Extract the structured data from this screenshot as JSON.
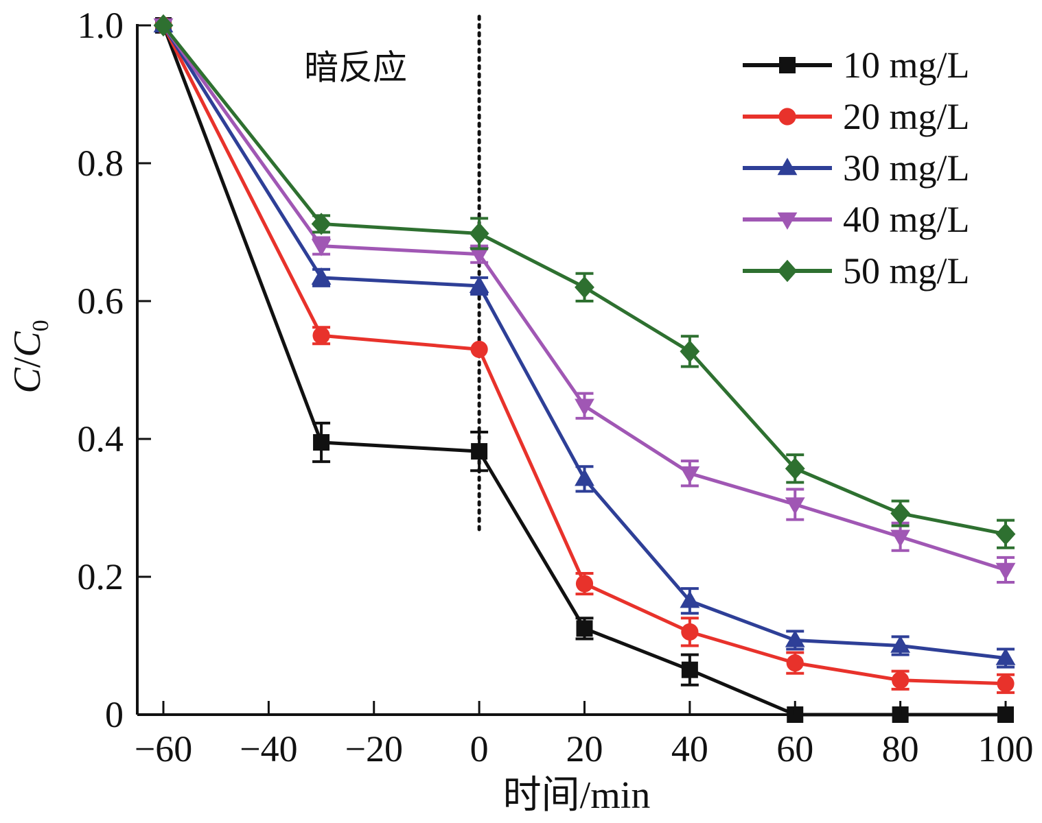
{
  "chart_data": {
    "type": "line",
    "xlabel": "时间/min",
    "ylabel": {
      "c": "C",
      "slash": "/",
      "c0": "C",
      "sub": "0"
    },
    "xlim": [
      -62,
      102
    ],
    "ylim": [
      0,
      1.0
    ],
    "x_ticks": [
      -60,
      -40,
      -20,
      0,
      20,
      40,
      60,
      80,
      100
    ],
    "x_tick_labels": [
      "−60",
      "−40",
      "−20",
      "0",
      "20",
      "40",
      "60",
      "80",
      "100"
    ],
    "y_ticks": [
      0,
      0.2,
      0.4,
      0.6,
      0.8,
      1.0
    ],
    "y_tick_labels": [
      "0",
      "0.2",
      "0.4",
      "0.6",
      "0.8",
      "1.0"
    ],
    "annotation": {
      "text": "暗反应",
      "x": -30,
      "y": 0.94
    },
    "dark_reaction_line_x": 0,
    "legend_position": "top-right",
    "grid": false,
    "x": [
      -60,
      -30,
      0,
      20,
      40,
      60,
      80,
      100
    ],
    "series": [
      {
        "name": "10 mg/L",
        "color": "#111111",
        "marker": "square",
        "values": [
          1.0,
          0.395,
          0.382,
          0.125,
          0.065,
          0.0,
          0.0,
          0.0
        ],
        "errors": [
          0.0,
          0.028,
          0.028,
          0.015,
          0.022,
          0.0,
          0.0,
          0.0
        ]
      },
      {
        "name": "20 mg/L",
        "color": "#e8322b",
        "marker": "circle",
        "values": [
          1.0,
          0.55,
          0.53,
          0.19,
          0.12,
          0.075,
          0.05,
          0.045
        ],
        "errors": [
          0.0,
          0.012,
          0.0,
          0.015,
          0.02,
          0.015,
          0.013,
          0.013
        ]
      },
      {
        "name": "30 mg/L",
        "color": "#2e3f97",
        "marker": "triangle-up",
        "values": [
          1.0,
          0.634,
          0.622,
          0.342,
          0.165,
          0.108,
          0.1,
          0.082
        ],
        "errors": [
          0.0,
          0.012,
          0.012,
          0.018,
          0.018,
          0.013,
          0.013,
          0.013
        ]
      },
      {
        "name": "40 mg/L",
        "color": "#a057b4",
        "marker": "triangle-down",
        "values": [
          1.0,
          0.68,
          0.668,
          0.448,
          0.35,
          0.305,
          0.258,
          0.21
        ],
        "errors": [
          0.0,
          0.012,
          0.012,
          0.018,
          0.018,
          0.022,
          0.02,
          0.018
        ]
      },
      {
        "name": "50 mg/L",
        "color": "#2e7030",
        "marker": "diamond",
        "values": [
          1.0,
          0.712,
          0.698,
          0.62,
          0.527,
          0.357,
          0.292,
          0.262
        ],
        "errors": [
          0.0,
          0.012,
          0.022,
          0.02,
          0.022,
          0.02,
          0.018,
          0.02
        ]
      }
    ]
  }
}
